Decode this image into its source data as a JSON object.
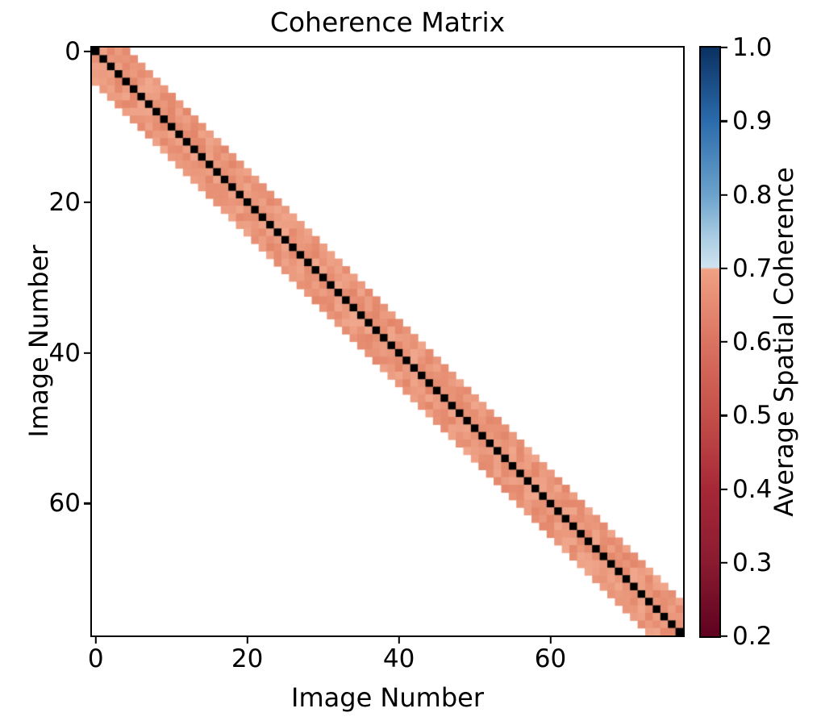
{
  "figure": {
    "background": "#ffffff"
  },
  "chart_data": {
    "type": "heatmap",
    "title": "Coherence Matrix",
    "xlabel": "Image Number",
    "ylabel": "Image Number",
    "n_images": 78,
    "x_ticks": [
      0,
      20,
      40,
      60
    ],
    "y_ticks": [
      0,
      20,
      40,
      60
    ],
    "grid": false,
    "matrix_structure": {
      "description": "Square banded coherence matrix: black cells on the main diagonal, salmon cells (average spatial coherence approx 0.6) for image pairs within |i-j| <= 4, blank/white (no data) everywhere else",
      "diagonal_rendering": "black",
      "band_halfwidth": 4,
      "band_value_approx": 0.6,
      "band_value_range": [
        0.55,
        0.65
      ],
      "offband": "no data (white)"
    },
    "colorbar": {
      "label": "Average Spatial Coherence",
      "vmin": 0.2,
      "vmax": 1.0,
      "tick_labels": [
        "1.0",
        "0.9",
        "0.8",
        "0.7",
        "0.6",
        "0.5",
        "0.4",
        "0.3",
        "0.2"
      ],
      "tick_values": [
        1.0,
        0.9,
        0.8,
        0.7,
        0.6,
        0.5,
        0.4,
        0.3,
        0.2
      ],
      "gradient_stops": [
        {
          "pos": 0.0,
          "color": "#0a3161"
        },
        {
          "pos": 0.125,
          "color": "#2b6bac"
        },
        {
          "pos": 0.25,
          "color": "#6ba2cb"
        },
        {
          "pos": 0.32,
          "color": "#a8cbe2"
        },
        {
          "pos": 0.373,
          "color": "#cfe3ef"
        },
        {
          "pos": 0.377,
          "color": "#f0a183"
        },
        {
          "pos": 0.5,
          "color": "#da7361"
        },
        {
          "pos": 0.625,
          "color": "#c44f49"
        },
        {
          "pos": 0.75,
          "color": "#a62837"
        },
        {
          "pos": 0.875,
          "color": "#8a1b30"
        },
        {
          "pos": 1.0,
          "color": "#5e0220"
        }
      ]
    },
    "colors": {
      "diagonal": "#000000",
      "band_dark": "#e3866a",
      "band_light": "#f0a78c",
      "axis": "#000000",
      "plot_background": "#ffffff"
    }
  }
}
